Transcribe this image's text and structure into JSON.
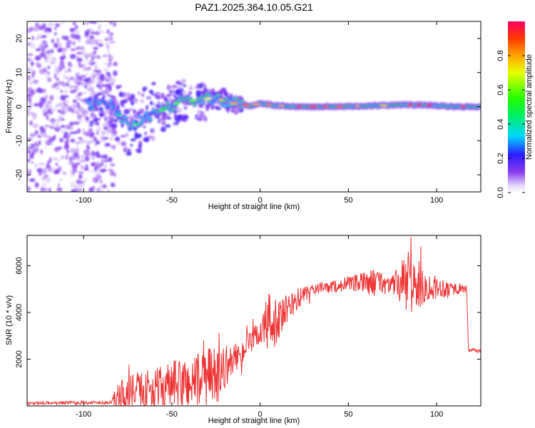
{
  "title": "PAZ1.2025.364.10.05.G21",
  "chart_data": [
    {
      "type": "heatmap",
      "name": "spectrogram",
      "xlabel": "Height of straight line (km)",
      "ylabel": "Frequency (Hz)",
      "xlim": [
        -132,
        125
      ],
      "ylim": [
        -25,
        25
      ],
      "xticks": [
        -100,
        -50,
        0,
        50,
        100
      ],
      "xtick_labels": [
        "-100",
        "-50",
        "0",
        "50",
        "100"
      ],
      "yticks": [
        -20,
        -10,
        0,
        10,
        20
      ],
      "ytick_labels": [
        "-20",
        "-10",
        "0",
        "10",
        "20"
      ],
      "colorbar": {
        "label": "Normalized spectral amplitude",
        "range": [
          0,
          1
        ],
        "ticks": [
          0.0,
          0.2,
          0.4,
          0.6,
          0.8
        ],
        "tick_labels": [
          "0.0",
          "0.2",
          "0.4",
          "0.6",
          "0.8"
        ]
      },
      "ridge": [
        {
          "x": -95,
          "f": 0.5
        },
        {
          "x": -85,
          "f": 1.0
        },
        {
          "x": -78,
          "f": -4.0
        },
        {
          "x": -72,
          "f": -6.0
        },
        {
          "x": -65,
          "f": -3.0
        },
        {
          "x": -55,
          "f": -1.0
        },
        {
          "x": -45,
          "f": 1.5
        },
        {
          "x": -35,
          "f": 2.0
        },
        {
          "x": -25,
          "f": 2.5
        },
        {
          "x": -15,
          "f": 1.0
        },
        {
          "x": -5,
          "f": 0.2
        },
        {
          "x": 0,
          "f": 1.0
        },
        {
          "x": 10,
          "f": 0.3
        },
        {
          "x": 20,
          "f": 0.0
        },
        {
          "x": 40,
          "f": 0.0
        },
        {
          "x": 60,
          "f": 0.2
        },
        {
          "x": 80,
          "f": 0.5
        },
        {
          "x": 95,
          "f": 0.5
        },
        {
          "x": 110,
          "f": 0.0
        },
        {
          "x": 125,
          "f": 0.0
        }
      ]
    },
    {
      "type": "line",
      "name": "snr",
      "xlabel": "Height of straight line (km)",
      "ylabel": "SNR (10 * v/v)",
      "xlim": [
        -132,
        125
      ],
      "ylim": [
        0,
        7300
      ],
      "xticks": [
        -100,
        -50,
        0,
        50,
        100
      ],
      "xtick_labels": [
        "-100",
        "-50",
        "0",
        "50",
        "100"
      ],
      "yticks": [
        2000,
        4000,
        6000
      ],
      "ytick_labels": [
        "2000",
        "4000",
        "6000"
      ],
      "color": "#ee3333",
      "envelope": [
        {
          "x": -132,
          "mean": 120,
          "amp": 60
        },
        {
          "x": -85,
          "mean": 150,
          "amp": 80
        },
        {
          "x": -78,
          "mean": 500,
          "amp": 800
        },
        {
          "x": -60,
          "mean": 700,
          "amp": 900
        },
        {
          "x": -40,
          "mean": 1000,
          "amp": 1200
        },
        {
          "x": -25,
          "mean": 1300,
          "amp": 1300
        },
        {
          "x": -15,
          "mean": 2000,
          "amp": 600
        },
        {
          "x": -5,
          "mean": 2700,
          "amp": 500
        },
        {
          "x": 0,
          "mean": 3200,
          "amp": 600
        },
        {
          "x": 5,
          "mean": 3500,
          "amp": 1500
        },
        {
          "x": 10,
          "mean": 3600,
          "amp": 900
        },
        {
          "x": 20,
          "mean": 4500,
          "amp": 500
        },
        {
          "x": 30,
          "mean": 5000,
          "amp": 250
        },
        {
          "x": 50,
          "mean": 5200,
          "amp": 300
        },
        {
          "x": 65,
          "mean": 5300,
          "amp": 600
        },
        {
          "x": 75,
          "mean": 5200,
          "amp": 400
        },
        {
          "x": 85,
          "mean": 5200,
          "amp": 1500
        },
        {
          "x": 95,
          "mean": 5100,
          "amp": 600
        },
        {
          "x": 117,
          "mean": 5000,
          "amp": 150
        },
        {
          "x": 118,
          "mean": 2400,
          "amp": 100
        },
        {
          "x": 125,
          "mean": 2350,
          "amp": 80
        }
      ]
    }
  ]
}
